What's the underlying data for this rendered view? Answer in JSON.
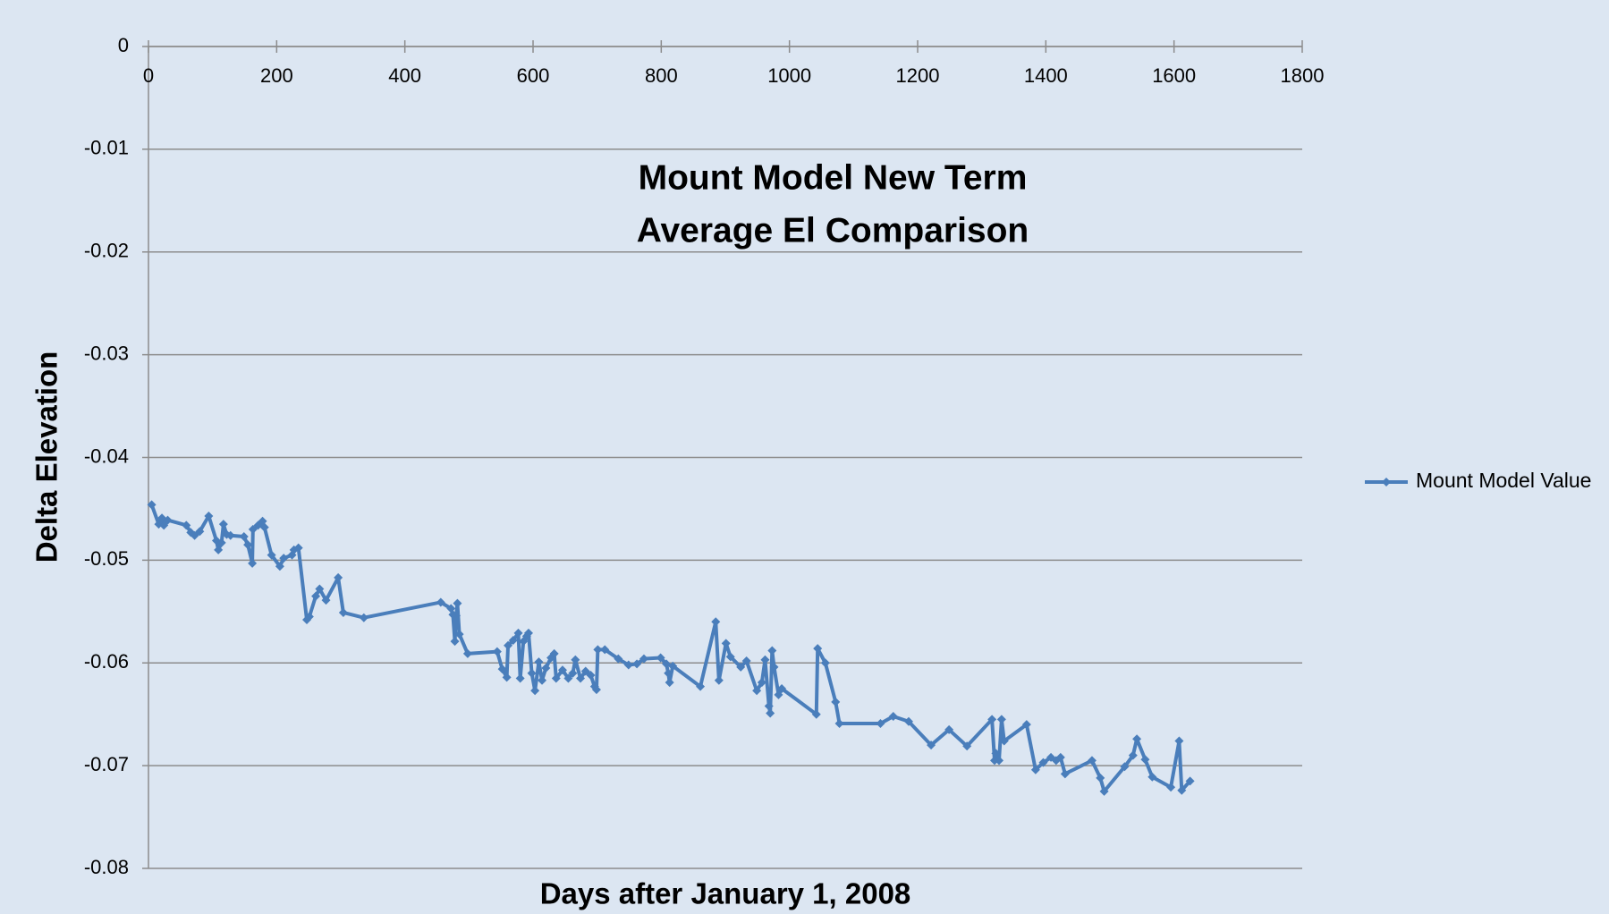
{
  "chart_data": {
    "type": "line",
    "title": [
      "Mount Model New Term",
      "Average El Comparison"
    ],
    "xlabel": "Days after January 1, 2008",
    "ylabel": "Delta Elevation",
    "xlim": [
      0,
      1800
    ],
    "xticks": [
      0,
      200,
      400,
      600,
      800,
      1000,
      1200,
      1400,
      1600,
      1800
    ],
    "ylim": [
      -0.08,
      0
    ],
    "yticks": [
      0,
      -0.01,
      -0.02,
      -0.03,
      -0.04,
      -0.05,
      -0.06,
      -0.07,
      -0.08
    ],
    "grid": true,
    "legend": "right",
    "x": [
      5,
      16,
      21,
      24,
      30,
      59,
      66,
      72,
      80,
      94,
      106,
      109,
      114,
      117,
      122,
      128,
      149,
      155,
      162,
      163,
      171,
      178,
      181,
      192,
      205,
      211,
      224,
      227,
      234,
      247,
      251,
      261,
      267,
      277,
      296,
      304,
      336,
      456,
      472,
      475,
      478,
      480,
      482,
      485,
      498,
      544,
      552,
      559,
      561,
      569,
      577,
      580,
      585,
      590,
      593,
      598,
      603,
      609,
      614,
      620,
      628,
      633,
      636,
      646,
      655,
      662,
      666,
      674,
      682,
      690,
      696,
      699,
      701,
      712,
      733,
      749,
      762,
      773,
      799,
      808,
      811,
      813,
      818,
      861,
      885,
      890,
      901,
      908,
      924,
      933,
      949,
      957,
      962,
      968,
      970,
      973,
      976,
      983,
      988,
      1042,
      1044,
      1056,
      1072,
      1078,
      1142,
      1162,
      1186,
      1221,
      1249,
      1277,
      1316,
      1320,
      1322,
      1327,
      1331,
      1335,
      1370,
      1384,
      1396,
      1408,
      1416,
      1423,
      1430,
      1472,
      1485,
      1491,
      1523,
      1536,
      1542,
      1555,
      1566,
      1595,
      1608,
      1612,
      1625
    ],
    "series": [
      {
        "name": "Mount Model Value",
        "color": "#4a7ebb",
        "values": [
          -0.0446,
          -0.0465,
          -0.0459,
          -0.0466,
          -0.0461,
          -0.0466,
          -0.0473,
          -0.0476,
          -0.0472,
          -0.0457,
          -0.0481,
          -0.049,
          -0.0483,
          -0.0465,
          -0.0475,
          -0.0476,
          -0.0477,
          -0.0485,
          -0.0503,
          -0.047,
          -0.0466,
          -0.0462,
          -0.0468,
          -0.0495,
          -0.0506,
          -0.0498,
          -0.0495,
          -0.049,
          -0.0488,
          -0.0558,
          -0.0555,
          -0.0535,
          -0.0528,
          -0.0539,
          -0.0517,
          -0.0551,
          -0.0556,
          -0.0541,
          -0.0547,
          -0.0553,
          -0.0579,
          -0.0554,
          -0.0542,
          -0.0572,
          -0.0591,
          -0.0589,
          -0.0606,
          -0.0614,
          -0.0583,
          -0.0578,
          -0.0571,
          -0.0615,
          -0.0579,
          -0.0574,
          -0.0571,
          -0.061,
          -0.0627,
          -0.0599,
          -0.0617,
          -0.0605,
          -0.0595,
          -0.0591,
          -0.0615,
          -0.0607,
          -0.0615,
          -0.061,
          -0.0597,
          -0.0615,
          -0.0608,
          -0.0612,
          -0.0623,
          -0.0626,
          -0.0587,
          -0.0587,
          -0.0596,
          -0.0602,
          -0.0601,
          -0.0596,
          -0.0595,
          -0.0601,
          -0.061,
          -0.0619,
          -0.0603,
          -0.0623,
          -0.056,
          -0.0617,
          -0.0581,
          -0.0594,
          -0.0604,
          -0.0598,
          -0.0627,
          -0.0619,
          -0.0597,
          -0.0642,
          -0.0649,
          -0.0588,
          -0.0604,
          -0.0631,
          -0.0625,
          -0.065,
          -0.0586,
          -0.06,
          -0.0638,
          -0.0659,
          -0.0659,
          -0.0652,
          -0.0657,
          -0.068,
          -0.0665,
          -0.0681,
          -0.0655,
          -0.0695,
          -0.0688,
          -0.0695,
          -0.0655,
          -0.0676,
          -0.066,
          -0.0704,
          -0.0697,
          -0.0692,
          -0.0695,
          -0.0692,
          -0.0708,
          -0.0695,
          -0.0712,
          -0.0725,
          -0.0701,
          -0.069,
          -0.0674,
          -0.0694,
          -0.0711,
          -0.0721,
          -0.0676,
          -0.0724,
          -0.0715
        ]
      }
    ]
  }
}
